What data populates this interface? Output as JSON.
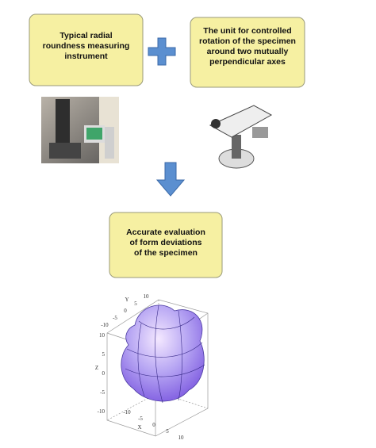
{
  "boxes": [
    {
      "lines": [
        "Typical radial",
        "roundness measuring",
        "instrument"
      ]
    },
    {
      "lines": [
        "The unit for controlled",
        "rotation of the specimen",
        "around two mutually",
        "perpendicular axes"
      ]
    },
    {
      "lines": [
        "Accurate evaluation",
        "of form deviations",
        "of the specimen"
      ]
    }
  ],
  "plot": {
    "y_axis": {
      "label": "Y",
      "ticks": [
        "10",
        "5",
        "0",
        "-5",
        "-10"
      ]
    },
    "z_axis": {
      "label": "Z",
      "ticks": [
        "10",
        "5",
        "0",
        "-5",
        "-10"
      ]
    },
    "x_axis": {
      "label": "X",
      "ticks": [
        "-10",
        "-5",
        "0",
        "5",
        "10"
      ]
    }
  }
}
